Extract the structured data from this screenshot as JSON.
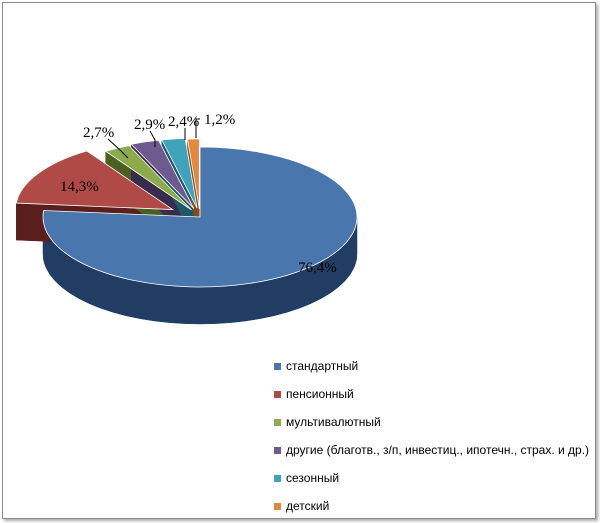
{
  "chart_data": {
    "type": "pie",
    "categories": [
      "стандартный",
      "пенсионный",
      "мультивалютный",
      "другие (благотв., з/п, инвестиц.,  ипотечн., страх. и др.)",
      "сезонный",
      "детский"
    ],
    "values": [
      76.4,
      14.3,
      2.7,
      2.9,
      2.4,
      1.2
    ],
    "data_labels": [
      "76,4%",
      "14,3%",
      "2,7%",
      "2,9%",
      "2,4%",
      "1,2%"
    ],
    "colors": [
      "#4a76ae",
      "#b04a47",
      "#8cab4a",
      "#6e5a8f",
      "#3fa3bb",
      "#e4883e"
    ],
    "dark_colors": [
      "#223d63",
      "#5a1e1c",
      "#4b5f22",
      "#382c4d",
      "#1d5968",
      "#8a4a17"
    ],
    "legend_position": "bottom-right",
    "style": "3d-exploded"
  }
}
